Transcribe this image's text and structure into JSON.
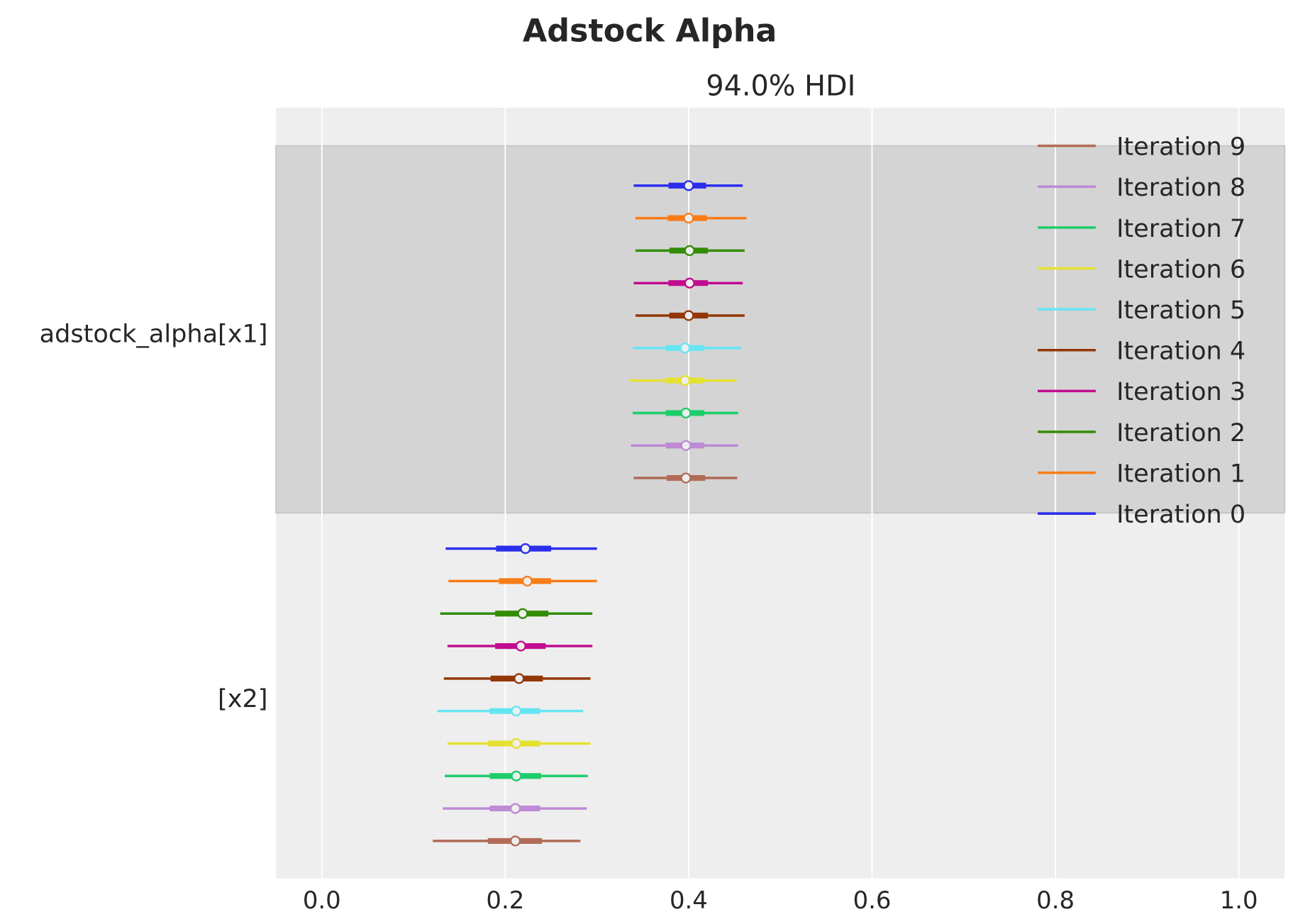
{
  "chart_data": {
    "type": "forest",
    "title": "Adstock Alpha",
    "subtitle": "94.0% HDI",
    "xlim": [
      -0.05,
      1.05
    ],
    "xticks": [
      "0.0",
      "0.2",
      "0.4",
      "0.6",
      "0.8",
      "1.0"
    ],
    "grid": true,
    "legend_position": "top-right",
    "categories": [
      "adstock_alpha[x1]",
      "[x2]"
    ],
    "series": [
      {
        "name": "Iteration 0",
        "color": "#2a2eec",
        "data": [
          {
            "hdi": [
              0.34,
              0.459
            ],
            "iqr": [
              0.378,
              0.419
            ],
            "median": 0.4
          },
          {
            "hdi": [
              0.135,
              0.3
            ],
            "iqr": [
              0.19,
              0.25
            ],
            "median": 0.222
          }
        ]
      },
      {
        "name": "Iteration 1",
        "color": "#fa7c17",
        "data": [
          {
            "hdi": [
              0.342,
              0.463
            ],
            "iqr": [
              0.377,
              0.42
            ],
            "median": 0.4
          },
          {
            "hdi": [
              0.138,
              0.3
            ],
            "iqr": [
              0.193,
              0.25
            ],
            "median": 0.224
          }
        ]
      },
      {
        "name": "Iteration 2",
        "color": "#328c06",
        "data": [
          {
            "hdi": [
              0.342,
              0.461
            ],
            "iqr": [
              0.379,
              0.421
            ],
            "median": 0.401
          },
          {
            "hdi": [
              0.129,
              0.295
            ],
            "iqr": [
              0.189,
              0.247
            ],
            "median": 0.219
          }
        ]
      },
      {
        "name": "Iteration 3",
        "color": "#c10c90",
        "data": [
          {
            "hdi": [
              0.34,
              0.459
            ],
            "iqr": [
              0.378,
              0.421
            ],
            "median": 0.401
          },
          {
            "hdi": [
              0.137,
              0.295
            ],
            "iqr": [
              0.189,
              0.244
            ],
            "median": 0.217
          }
        ]
      },
      {
        "name": "Iteration 4",
        "color": "#933708",
        "data": [
          {
            "hdi": [
              0.342,
              0.461
            ],
            "iqr": [
              0.379,
              0.421
            ],
            "median": 0.4
          },
          {
            "hdi": [
              0.133,
              0.293
            ],
            "iqr": [
              0.184,
              0.241
            ],
            "median": 0.215
          }
        ]
      },
      {
        "name": "Iteration 5",
        "color": "#65e5f3",
        "data": [
          {
            "hdi": [
              0.339,
              0.458
            ],
            "iqr": [
              0.375,
              0.417
            ],
            "median": 0.396
          },
          {
            "hdi": [
              0.126,
              0.285
            ],
            "iqr": [
              0.183,
              0.238
            ],
            "median": 0.212
          }
        ]
      },
      {
        "name": "Iteration 6",
        "color": "#e5e131",
        "data": [
          {
            "hdi": [
              0.336,
              0.452
            ],
            "iqr": [
              0.375,
              0.417
            ],
            "median": 0.396
          },
          {
            "hdi": [
              0.137,
              0.293
            ],
            "iqr": [
              0.181,
              0.238
            ],
            "median": 0.212
          }
        ]
      },
      {
        "name": "Iteration 7",
        "color": "#1ccd6a",
        "data": [
          {
            "hdi": [
              0.339,
              0.454
            ],
            "iqr": [
              0.375,
              0.417
            ],
            "median": 0.397
          },
          {
            "hdi": [
              0.134,
              0.29
            ],
            "iqr": [
              0.183,
              0.239
            ],
            "median": 0.212
          }
        ]
      },
      {
        "name": "Iteration 8",
        "color": "#bd8ad5",
        "data": [
          {
            "hdi": [
              0.337,
              0.454
            ],
            "iqr": [
              0.375,
              0.417
            ],
            "median": 0.397
          },
          {
            "hdi": [
              0.132,
              0.289
            ],
            "iqr": [
              0.183,
              0.238
            ],
            "median": 0.211
          }
        ]
      },
      {
        "name": "Iteration 9",
        "color": "#b16b57",
        "data": [
          {
            "hdi": [
              0.34,
              0.453
            ],
            "iqr": [
              0.376,
              0.418
            ],
            "median": 0.397
          },
          {
            "hdi": [
              0.121,
              0.282
            ],
            "iqr": [
              0.181,
              0.24
            ],
            "median": 0.211
          }
        ]
      }
    ]
  }
}
